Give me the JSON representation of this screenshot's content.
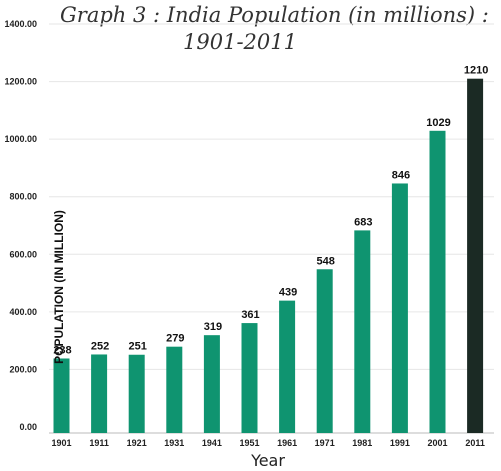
{
  "chart_data": {
    "type": "bar",
    "title_line1": "Graph 3 : India Population (in millions) :",
    "title_line2": "1901-2011",
    "xlabel": "Year",
    "ylabel": "POPULATION (IN MILLION)",
    "categories": [
      "1901",
      "1911",
      "1921",
      "1931",
      "1941",
      "1951",
      "1961",
      "1971",
      "1981",
      "1991",
      "2001",
      "2011"
    ],
    "values": [
      238,
      252,
      251,
      279,
      319,
      361,
      439,
      548,
      683,
      846,
      1029,
      1210
    ],
    "y_ticks": [
      "0.00",
      "200.00",
      "400.00",
      "600.00",
      "800.00",
      "1000.00",
      "1200.00",
      "1400.00"
    ],
    "ylim": [
      0,
      1400
    ],
    "colors": {
      "bar": "#0f9470",
      "highlight_bar": "#1b2a24",
      "gridline": "#e6e6e6"
    },
    "highlight_index": 11
  }
}
